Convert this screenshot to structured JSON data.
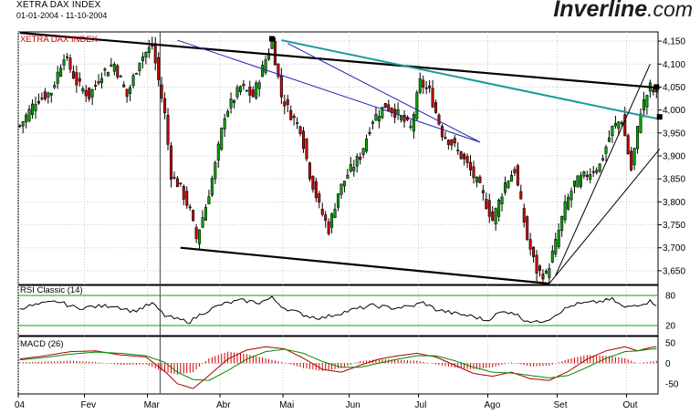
{
  "header": {
    "title": "XETRA DAX INDEX",
    "date_range": "01-01-2004 - 11-10-2004"
  },
  "brand": {
    "name_part1": "Inverline",
    "name_part2": ".com"
  },
  "colors": {
    "up_candle": "#00aa00",
    "down_candle": "#cc0000",
    "trend_black": "#000000",
    "trend_teal": "#1a9a9a",
    "trend_blue": "#2222aa",
    "rsi_band": "#00aa00",
    "macd_line": "#aa0000",
    "macd_signal": "#008800",
    "histogram": "#cc0000"
  },
  "chart_data": [
    {
      "type": "candlestick",
      "title": "XETRA DAX INDEX",
      "ylim": [
        3620,
        4170
      ],
      "y_ticks": [
        "4,150",
        "4,100",
        "4,050",
        "4,000",
        "3,950",
        "3,900",
        "3,850",
        "3,800",
        "3,750",
        "3,700",
        "3,650"
      ],
      "y_tick_values": [
        4150,
        4100,
        4050,
        4000,
        3950,
        3900,
        3850,
        3800,
        3750,
        3700,
        3650
      ],
      "x_labels": [
        "04",
        "Fev",
        "Mar",
        "Abr",
        "Mai",
        "Jun",
        "Jul",
        "Ago",
        "Set",
        "Out"
      ],
      "sessions": 203,
      "x_label_sessions": [
        0,
        21,
        41,
        64,
        84,
        105,
        127,
        149,
        171,
        193
      ],
      "close_series_weekly": [
        [
          0,
          3965
        ],
        [
          5,
          4020
        ],
        [
          10,
          4040
        ],
        [
          14,
          4120
        ],
        [
          18,
          4060
        ],
        [
          22,
          4030
        ],
        [
          26,
          4080
        ],
        [
          30,
          4100
        ],
        [
          34,
          4030
        ],
        [
          38,
          4110
        ],
        [
          42,
          4140
        ],
        [
          46,
          3990
        ],
        [
          48,
          3860
        ],
        [
          51,
          3830
        ],
        [
          54,
          3780
        ],
        [
          56,
          3720
        ],
        [
          59,
          3790
        ],
        [
          62,
          3880
        ],
        [
          65,
          3990
        ],
        [
          70,
          4050
        ],
        [
          74,
          4030
        ],
        [
          78,
          4110
        ],
        [
          80,
          4150
        ],
        [
          83,
          4030
        ],
        [
          86,
          3990
        ],
        [
          89,
          3960
        ],
        [
          92,
          3860
        ],
        [
          95,
          3790
        ],
        [
          98,
          3740
        ],
        [
          101,
          3820
        ],
        [
          104,
          3860
        ],
        [
          108,
          3900
        ],
        [
          112,
          3980
        ],
        [
          116,
          4010
        ],
        [
          120,
          3990
        ],
        [
          124,
          3960
        ],
        [
          127,
          4060
        ],
        [
          130,
          4040
        ],
        [
          134,
          3950
        ],
        [
          138,
          3920
        ],
        [
          142,
          3880
        ],
        [
          146,
          3830
        ],
        [
          150,
          3760
        ],
        [
          154,
          3840
        ],
        [
          157,
          3870
        ],
        [
          161,
          3720
        ],
        [
          164,
          3650
        ],
        [
          167,
          3640
        ],
        [
          170,
          3710
        ],
        [
          173,
          3790
        ],
        [
          176,
          3840
        ],
        [
          180,
          3860
        ],
        [
          184,
          3880
        ],
        [
          188,
          3960
        ],
        [
          191,
          3980
        ],
        [
          194,
          3870
        ],
        [
          197,
          4000
        ],
        [
          200,
          4050
        ],
        [
          203,
          4020
        ]
      ],
      "trendlines": [
        {
          "name": "resistance",
          "from": [
            0,
            4168
          ],
          "to": [
            203,
            4048
          ]
        },
        {
          "name": "channel-down",
          "from": [
            51,
            3700
          ],
          "to": [
            168,
            3622
          ]
        },
        {
          "name": "teal",
          "from": [
            83,
            4152
          ],
          "to": [
            203,
            3980
          ]
        },
        {
          "name": "blue",
          "from": [
            50,
            4152
          ],
          "to": [
            146,
            3930
          ]
        },
        {
          "name": "uptrend",
          "from": [
            168,
            3622
          ],
          "to": [
            203,
            3915
          ]
        }
      ]
    },
    {
      "type": "line",
      "title": "RSI Classic (14)",
      "ylim": [
        0,
        100
      ],
      "y_ticks": [
        "80",
        "20"
      ],
      "y_tick_values": [
        80,
        20
      ],
      "bands": [
        80,
        20
      ],
      "values_weekly": [
        [
          0,
          55
        ],
        [
          6,
          62
        ],
        [
          12,
          68
        ],
        [
          18,
          55
        ],
        [
          24,
          58
        ],
        [
          30,
          60
        ],
        [
          36,
          48
        ],
        [
          42,
          64
        ],
        [
          46,
          40
        ],
        [
          50,
          32
        ],
        [
          54,
          28
        ],
        [
          58,
          45
        ],
        [
          64,
          62
        ],
        [
          70,
          70
        ],
        [
          76,
          66
        ],
        [
          80,
          75
        ],
        [
          84,
          55
        ],
        [
          88,
          46
        ],
        [
          92,
          38
        ],
        [
          96,
          35
        ],
        [
          100,
          42
        ],
        [
          106,
          52
        ],
        [
          112,
          60
        ],
        [
          118,
          55
        ],
        [
          124,
          58
        ],
        [
          128,
          66
        ],
        [
          132,
          52
        ],
        [
          138,
          44
        ],
        [
          144,
          38
        ],
        [
          148,
          30
        ],
        [
          152,
          45
        ],
        [
          156,
          48
        ],
        [
          160,
          32
        ],
        [
          164,
          26
        ],
        [
          168,
          34
        ],
        [
          172,
          50
        ],
        [
          176,
          62
        ],
        [
          182,
          66
        ],
        [
          188,
          72
        ],
        [
          192,
          55
        ],
        [
          196,
          62
        ],
        [
          200,
          68
        ],
        [
          203,
          60
        ]
      ]
    },
    {
      "type": "bar+line",
      "title": "MACD (26)",
      "ylim": [
        -75,
        65
      ],
      "y_ticks": [
        "50",
        "0",
        "-50"
      ],
      "y_tick_values": [
        50,
        0,
        -50
      ],
      "macd_weekly": [
        [
          0,
          10
        ],
        [
          8,
          18
        ],
        [
          16,
          28
        ],
        [
          24,
          30
        ],
        [
          32,
          20
        ],
        [
          40,
          15
        ],
        [
          46,
          -20
        ],
        [
          50,
          -50
        ],
        [
          55,
          -62
        ],
        [
          60,
          -30
        ],
        [
          66,
          10
        ],
        [
          72,
          32
        ],
        [
          78,
          40
        ],
        [
          84,
          35
        ],
        [
          90,
          12
        ],
        [
          96,
          -15
        ],
        [
          102,
          -22
        ],
        [
          108,
          -5
        ],
        [
          114,
          10
        ],
        [
          120,
          18
        ],
        [
          126,
          24
        ],
        [
          132,
          15
        ],
        [
          138,
          -5
        ],
        [
          144,
          -25
        ],
        [
          150,
          -32
        ],
        [
          156,
          -22
        ],
        [
          162,
          -38
        ],
        [
          168,
          -42
        ],
        [
          174,
          -20
        ],
        [
          180,
          10
        ],
        [
          186,
          30
        ],
        [
          192,
          40
        ],
        [
          196,
          30
        ],
        [
          200,
          38
        ],
        [
          203,
          42
        ]
      ],
      "signal_weekly": [
        [
          0,
          8
        ],
        [
          8,
          14
        ],
        [
          16,
          22
        ],
        [
          24,
          27
        ],
        [
          32,
          24
        ],
        [
          40,
          18
        ],
        [
          46,
          2
        ],
        [
          50,
          -22
        ],
        [
          55,
          -40
        ],
        [
          60,
          -42
        ],
        [
          66,
          -18
        ],
        [
          72,
          10
        ],
        [
          78,
          28
        ],
        [
          84,
          34
        ],
        [
          90,
          24
        ],
        [
          96,
          4
        ],
        [
          102,
          -10
        ],
        [
          108,
          -10
        ],
        [
          114,
          0
        ],
        [
          120,
          10
        ],
        [
          126,
          18
        ],
        [
          132,
          18
        ],
        [
          138,
          6
        ],
        [
          144,
          -10
        ],
        [
          150,
          -22
        ],
        [
          156,
          -24
        ],
        [
          162,
          -30
        ],
        [
          168,
          -36
        ],
        [
          174,
          -30
        ],
        [
          180,
          -10
        ],
        [
          186,
          12
        ],
        [
          192,
          28
        ],
        [
          196,
          30
        ],
        [
          200,
          34
        ],
        [
          203,
          36
        ]
      ]
    }
  ]
}
